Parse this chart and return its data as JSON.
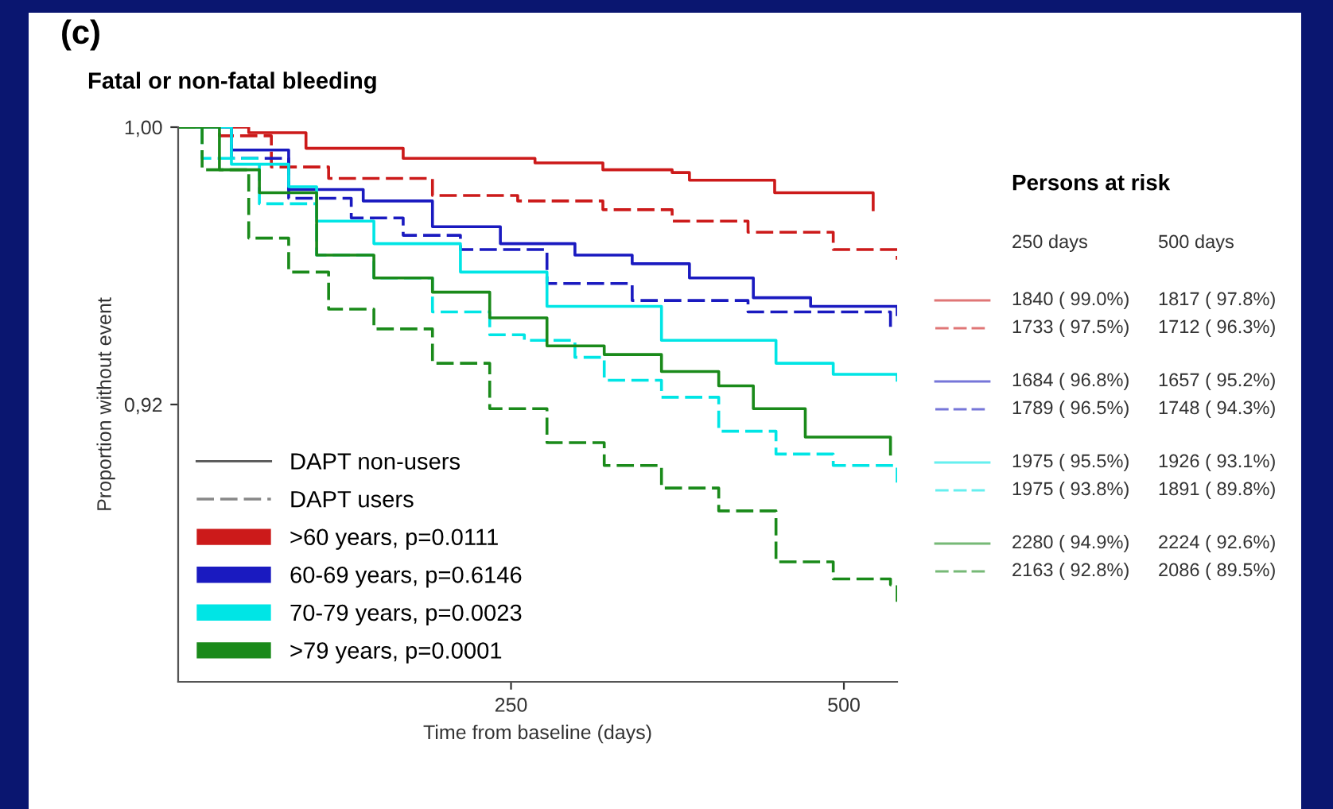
{
  "chart_data": {
    "type": "step",
    "title": "(c)",
    "subtitle": "Fatal or non-fatal bleeding",
    "xlabel": "Time from baseline (days)",
    "ylabel": "Proportion without event",
    "xlim": [
      0,
      540
    ],
    "xticks": [
      250,
      500
    ],
    "ylim": [
      0.84,
      1.0
    ],
    "yticks": [
      {
        "value": 1.0,
        "label": "1,00"
      },
      {
        "value": 0.92,
        "label": "0,92"
      }
    ],
    "grid": false,
    "legend": "bottom left",
    "marker": "none",
    "series": [
      {
        "name": ">60 years, p=0.0111",
        "color": "#cc1a1a",
        "line_style": "solid",
        "x": [
          0,
          53,
          96,
          169,
          268,
          319,
          371,
          384,
          448,
          522
        ],
        "values": [
          1.0,
          0.9984,
          0.9939,
          0.991,
          0.9897,
          0.9877,
          0.9869,
          0.9847,
          0.9811,
          0.9762
        ]
      },
      {
        "color": "#cc1a1a",
        "line_style": "dashed",
        "x": [
          0,
          31,
          70,
          113,
          191,
          255,
          319,
          371,
          428,
          492,
          540
        ],
        "values": [
          1.0,
          0.9975,
          0.9885,
          0.9852,
          0.9803,
          0.9787,
          0.9762,
          0.9729,
          0.9697,
          0.9647,
          0.9618
        ]
      },
      {
        "name": "60-69 years, p=0.6146",
        "color": "#1a1ac0",
        "line_style": "solid",
        "x": [
          0,
          40,
          83,
          139,
          191,
          242,
          298,
          341,
          384,
          432,
          475,
          540
        ],
        "values": [
          1.0,
          0.9934,
          0.982,
          0.9787,
          0.9713,
          0.9664,
          0.9631,
          0.9606,
          0.9565,
          0.9508,
          0.9483,
          0.9459
        ]
      },
      {
        "color": "#1a1ac0",
        "line_style": "dashed",
        "x": [
          0,
          40,
          83,
          130,
          169,
          212,
          277,
          341,
          428,
          535
        ],
        "values": [
          1.0,
          0.991,
          0.9795,
          0.9738,
          0.9688,
          0.9647,
          0.9549,
          0.95,
          0.9467,
          0.9418
        ]
      },
      {
        "name": "70-79 years, p=0.0023",
        "color": "#00e5e5",
        "line_style": "solid",
        "x": [
          0,
          40,
          83,
          104,
          147,
          212,
          277,
          363,
          449,
          492,
          540
        ],
        "values": [
          1.0,
          0.9893,
          0.9828,
          0.9729,
          0.9664,
          0.9582,
          0.9483,
          0.9385,
          0.9319,
          0.9287,
          0.927
        ]
      },
      {
        "color": "#00e5e5",
        "line_style": "dashed",
        "x": [
          0,
          18,
          61,
          104,
          147,
          191,
          234,
          260,
          298,
          320,
          363,
          406,
          449,
          492,
          540
        ],
        "values": [
          1.0,
          0.991,
          0.9779,
          0.9631,
          0.9565,
          0.9467,
          0.9401,
          0.9385,
          0.9336,
          0.927,
          0.9221,
          0.9123,
          0.9057,
          0.9024,
          0.8975
        ]
      },
      {
        "name": ">79 years, p=0.0001",
        "color": "#1a8a1a",
        "line_style": "solid",
        "x": [
          0,
          31,
          61,
          104,
          147,
          191,
          234,
          277,
          320,
          363,
          406,
          432,
          471,
          535
        ],
        "values": [
          1.0,
          0.9877,
          0.9811,
          0.9631,
          0.9565,
          0.9524,
          0.945,
          0.9369,
          0.9344,
          0.9295,
          0.9254,
          0.9188,
          0.9106,
          0.9057
        ]
      },
      {
        "color": "#1a8a1a",
        "line_style": "dashed",
        "x": [
          0,
          18,
          53,
          83,
          113,
          147,
          191,
          234,
          277,
          320,
          363,
          406,
          449,
          492,
          535,
          540
        ],
        "values": [
          1.0,
          0.9877,
          0.968,
          0.9582,
          0.9475,
          0.9418,
          0.9319,
          0.9188,
          0.909,
          0.9024,
          0.8959,
          0.8893,
          0.8746,
          0.8697,
          0.868,
          0.8631
        ]
      }
    ],
    "annotations": [
      "DAPT non-users",
      "DAPT users",
      "Persons at risk",
      "250 days",
      "500 days",
      "1840 ( 99.0%)",
      "1817 ( 97.8%)",
      "1733 ( 97.5%)",
      "1712 ( 96.3%)",
      "1684 ( 96.8%)",
      "1657 ( 95.2%)",
      "1789 ( 96.5%)",
      "1748 ( 94.3%)",
      "1975 ( 95.5%)",
      "1926 ( 93.1%)",
      "1975 ( 93.8%)",
      "1891 ( 89.8%)",
      "2280 ( 94.9%)",
      "2224 ( 92.6%)",
      "2163 ( 92.8%)",
      "2086 ( 89.5%)"
    ]
  }
}
